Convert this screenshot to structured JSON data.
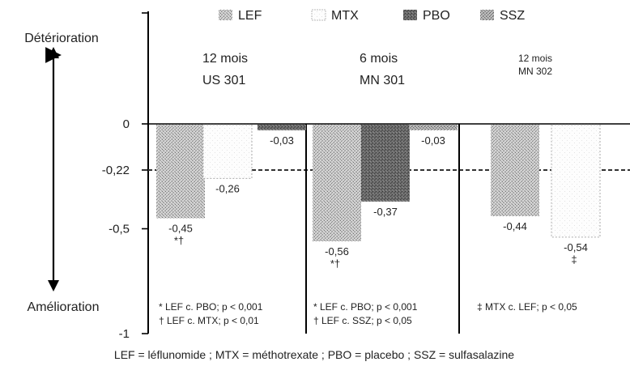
{
  "chart_data": {
    "type": "bar",
    "ylim": [
      -1,
      0
    ],
    "yticks": [
      {
        "value": 0,
        "label": "0"
      },
      {
        "value": -0.22,
        "label": "-0,22"
      },
      {
        "value": -0.5,
        "label": "-0,5"
      },
      {
        "value": -1,
        "label": "-1"
      }
    ],
    "reference_line": -0.22,
    "axis_top_label": "Détérioration",
    "axis_bottom_label": "Amélioration",
    "legend": [
      {
        "key": "LEF",
        "label": "LEF",
        "pattern": "stipple-light"
      },
      {
        "key": "MTX",
        "label": "MTX",
        "pattern": "white"
      },
      {
        "key": "PBO",
        "label": "PBO",
        "pattern": "stipple-dark"
      },
      {
        "key": "SSZ",
        "label": "SSZ",
        "pattern": "stipple-medium"
      }
    ],
    "groups": [
      {
        "title_line1": "12 mois",
        "title_line2": "US 301",
        "bars": [
          {
            "series": "LEF",
            "value": -0.45,
            "label": "-0,45",
            "marker": "*†"
          },
          {
            "series": "MTX",
            "value": -0.26,
            "label": "-0,26",
            "marker": ""
          },
          {
            "series": "PBO",
            "value": -0.03,
            "label": "-0,03",
            "marker": ""
          }
        ],
        "notes": [
          "* LEF c. PBO; p < 0,001",
          "† LEF c. MTX; p < 0,01"
        ]
      },
      {
        "title_line1": "6 mois",
        "title_line2": "MN 301",
        "bars": [
          {
            "series": "LEF",
            "value": -0.56,
            "label": "-0,56",
            "marker": "*†"
          },
          {
            "series": "PBO",
            "value": -0.37,
            "label": "-0,37",
            "marker": ""
          },
          {
            "series": "SSZ",
            "value": -0.03,
            "label": "-0,03",
            "marker": ""
          }
        ],
        "notes": [
          "* LEF c. PBO; p < 0,001",
          "† LEF c. SSZ; p < 0,05"
        ]
      },
      {
        "title_line1": "12 mois",
        "title_line2": "MN 302",
        "bars": [
          {
            "series": "LEF",
            "value": -0.44,
            "label": "-0,44",
            "marker": ""
          },
          {
            "series": "MTX",
            "value": -0.54,
            "label": "-0,54",
            "marker": "‡"
          }
        ],
        "notes": [
          "‡ MTX c. LEF; p < 0,05"
        ]
      }
    ],
    "caption": "LEF = léflunomide ; MTX = méthotrexate ; PBO = placebo ; SSZ = sulfasalazine"
  }
}
